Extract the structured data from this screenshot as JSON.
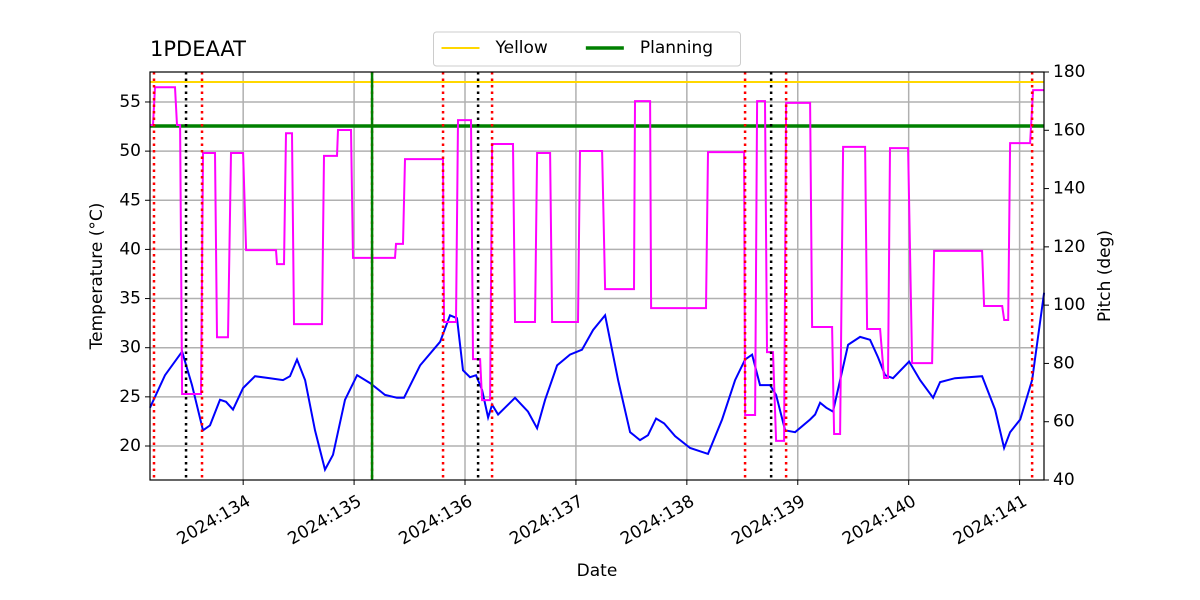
{
  "chart_data": {
    "type": "line",
    "title": "1PDEAAT",
    "x_label": "Date",
    "y_label": "Temperature (°C)",
    "y2_label": "Pitch (deg)",
    "y2_color": "#ff00ff",
    "xlim": [
      133.16,
      141.22
    ],
    "xticks": [
      {
        "value": 134,
        "label": "2024:134"
      },
      {
        "value": 135,
        "label": "2024:135"
      },
      {
        "value": 136,
        "label": "2024:136"
      },
      {
        "value": 137,
        "label": "2024:137"
      },
      {
        "value": 138,
        "label": "2024:138"
      },
      {
        "value": 139,
        "label": "2024:139"
      },
      {
        "value": 140,
        "label": "2024:140"
      },
      {
        "value": 141,
        "label": "2024:141"
      }
    ],
    "ylim": [
      16.54,
      58.05
    ],
    "yticks": [
      20,
      25,
      30,
      35,
      40,
      45,
      50,
      55
    ],
    "y2lim": [
      40,
      180
    ],
    "y2ticks": [
      40,
      60,
      80,
      100,
      120,
      140,
      160,
      180
    ],
    "grid": true,
    "legend": "upper center",
    "hlines": [
      {
        "name": "Yellow",
        "color": "#ffd700",
        "y": 57.03,
        "width": 2
      },
      {
        "name": "Planning",
        "color": "#008000",
        "y": 52.56,
        "width": 3.5
      }
    ],
    "vlines": [
      {
        "color": "#ff0000",
        "dash": "dotted",
        "x": [
          133.196,
          133.629,
          135.162,
          135.802,
          136.244,
          138.525,
          138.895,
          141.113
        ]
      },
      {
        "color": "#000000",
        "dash": "dotted",
        "x": [
          133.485,
          136.118,
          138.76
        ]
      },
      {
        "color": "#008000",
        "dash": "solid",
        "x": [
          135.162
        ]
      }
    ],
    "series": [
      {
        "color": "#0000ff",
        "axis": "y",
        "x": [
          133.16,
          133.295,
          133.449,
          133.539,
          133.638,
          133.701,
          133.791,
          133.845,
          133.908,
          133.999,
          134.107,
          134.242,
          134.359,
          134.422,
          134.485,
          134.558,
          134.648,
          134.738,
          134.81,
          134.918,
          135.027,
          135.144,
          135.279,
          135.387,
          135.45,
          135.595,
          135.775,
          135.865,
          135.928,
          135.982,
          136.045,
          136.099,
          136.154,
          136.208,
          136.244,
          136.298,
          136.361,
          136.451,
          136.568,
          136.65,
          136.722,
          136.83,
          136.947,
          137.055,
          137.155,
          137.263,
          137.38,
          137.488,
          137.578,
          137.65,
          137.723,
          137.795,
          137.894,
          138.029,
          138.191,
          138.318,
          138.435,
          138.525,
          138.588,
          138.66,
          138.75,
          138.805,
          138.886,
          138.976,
          139.111,
          139.156,
          139.201,
          139.256,
          139.318,
          139.454,
          139.562,
          139.652,
          139.724,
          139.787,
          139.859,
          140.004,
          140.103,
          140.22,
          140.283,
          140.418,
          140.662,
          140.779,
          140.86,
          140.914,
          141.005,
          141.113,
          141.221
        ],
        "values": [
          23.9,
          27.2,
          29.6,
          26.2,
          21.6,
          22.1,
          24.7,
          24.5,
          23.7,
          25.9,
          27.1,
          26.9,
          26.7,
          27.1,
          28.8,
          26.7,
          21.6,
          17.6,
          19.1,
          24.7,
          27.2,
          26.4,
          25.2,
          24.9,
          24.9,
          28.2,
          30.6,
          33.3,
          33.0,
          27.7,
          27.0,
          27.2,
          25.7,
          22.9,
          24.2,
          23.2,
          23.9,
          24.9,
          23.5,
          21.8,
          24.7,
          28.2,
          29.3,
          29.8,
          31.8,
          33.3,
          26.7,
          21.4,
          20.6,
          21.1,
          22.8,
          22.3,
          21.0,
          19.8,
          19.2,
          22.7,
          26.7,
          28.8,
          29.3,
          26.2,
          26.2,
          25.2,
          21.6,
          21.4,
          22.7,
          23.2,
          24.4,
          23.9,
          23.5,
          30.3,
          31.1,
          30.8,
          29.0,
          27.2,
          26.9,
          28.6,
          26.7,
          24.9,
          26.5,
          26.9,
          27.1,
          23.7,
          19.8,
          21.4,
          22.7,
          26.7,
          35.6
        ]
      },
      {
        "color": "#ff00ff",
        "axis": "y2",
        "x": [
          133.16,
          133.187,
          133.205,
          133.385,
          133.403,
          133.431,
          133.449,
          133.62,
          133.638,
          133.746,
          133.764,
          133.863,
          133.89,
          133.999,
          134.026,
          134.296,
          134.305,
          134.368,
          134.386,
          134.44,
          134.458,
          134.711,
          134.729,
          134.846,
          134.855,
          134.972,
          134.99,
          135.369,
          135.378,
          135.441,
          135.459,
          135.802,
          135.811,
          135.919,
          135.937,
          136.054,
          136.072,
          136.136,
          136.154,
          136.226,
          136.244,
          136.433,
          136.451,
          136.631,
          136.65,
          136.767,
          136.785,
          137.019,
          137.037,
          137.236,
          137.263,
          137.524,
          137.533,
          137.669,
          137.678,
          138.173,
          138.191,
          138.516,
          138.525,
          138.615,
          138.633,
          138.705,
          138.723,
          138.777,
          138.805,
          138.877,
          138.895,
          139.111,
          139.129,
          139.31,
          139.328,
          139.382,
          139.409,
          139.607,
          139.625,
          139.742,
          139.778,
          139.814,
          139.832,
          139.995,
          140.031,
          140.211,
          140.229,
          140.662,
          140.68,
          140.843,
          140.861,
          140.897,
          140.914,
          141.095,
          141.122,
          141.221
        ],
        "values": [
          161.8,
          161.8,
          174.8,
          174.8,
          161.8,
          161.8,
          69.5,
          69.5,
          152.2,
          152.2,
          89,
          89,
          152.2,
          152.2,
          118.9,
          118.9,
          114.1,
          114.1,
          159,
          159,
          93.5,
          93.5,
          151.2,
          151.2,
          160.1,
          160.1,
          116.2,
          116.2,
          121,
          121,
          150.1,
          150.1,
          94.2,
          94.2,
          163.5,
          163.5,
          81.5,
          81.5,
          67.4,
          67.4,
          155.3,
          155.3,
          94.2,
          94.2,
          152.2,
          152.2,
          94.2,
          94.2,
          152.9,
          152.9,
          105.5,
          105.5,
          170,
          170,
          99,
          99,
          152.5,
          152.5,
          62.3,
          62.3,
          170,
          170,
          83.9,
          83.9,
          53.4,
          53.4,
          169.4,
          169.4,
          92.5,
          92.5,
          55.8,
          55.8,
          154.3,
          154.3,
          91.8,
          91.8,
          75,
          75,
          153.9,
          153.9,
          80.1,
          80.1,
          118.6,
          118.6,
          99.7,
          99.7,
          94.9,
          94.9,
          155.6,
          155.6,
          173.8,
          173.8
        ]
      }
    ]
  }
}
